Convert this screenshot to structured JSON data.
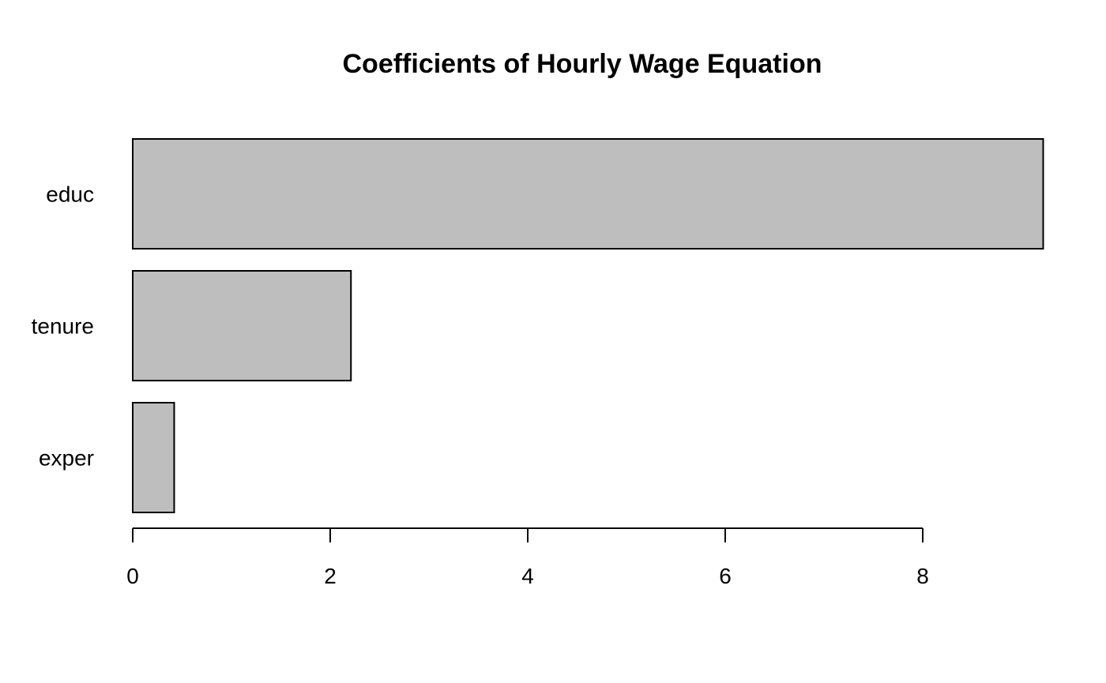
{
  "chart_data": {
    "type": "bar",
    "orientation": "horizontal",
    "title": "Coefficients of Hourly Wage Equation",
    "xlabel": "",
    "ylabel": "",
    "categories": [
      "educ",
      "tenure",
      "exper"
    ],
    "values": [
      9.22,
      2.21,
      0.42
    ],
    "xlim": [
      0,
      9.2
    ],
    "x_ticks": [
      0,
      2,
      4,
      6,
      8
    ],
    "bar_color": "#bebebe",
    "grid": false,
    "legend": "none"
  }
}
